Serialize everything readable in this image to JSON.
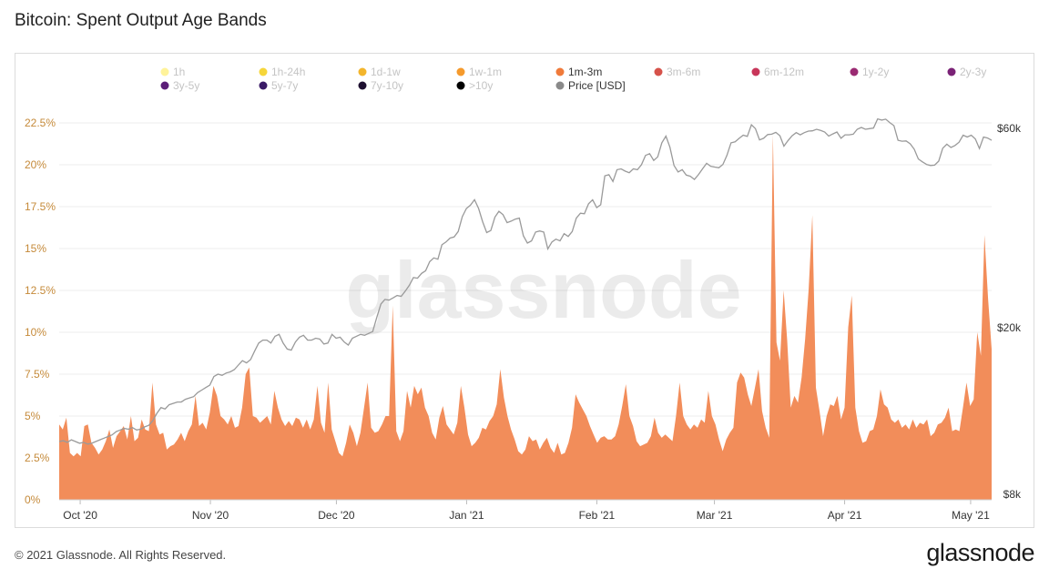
{
  "title": "Bitcoin: Spent Output Age Bands",
  "footer": {
    "copyright": "© 2021 Glassnode. All Rights Reserved.",
    "logo": "glassnode"
  },
  "watermark": "glassnode",
  "colors": {
    "area": "#f28d5a",
    "price": "#9a9a9a",
    "left_axis": "#c58a3a",
    "right_axis": "#333333"
  },
  "chart_data": {
    "type": "area",
    "title": "Bitcoin: Spent Output Age Bands",
    "legend": [
      {
        "label": "1h",
        "color": "#fff39a",
        "active": false
      },
      {
        "label": "1h-24h",
        "color": "#f6d63a",
        "active": false
      },
      {
        "label": "1d-1w",
        "color": "#f3b52c",
        "active": false
      },
      {
        "label": "1w-1m",
        "color": "#f59a2c",
        "active": false
      },
      {
        "label": "1m-3m",
        "color": "#f07a3a",
        "active": true
      },
      {
        "label": "3m-6m",
        "color": "#d6524a",
        "active": false
      },
      {
        "label": "6m-12m",
        "color": "#c8365a",
        "active": false
      },
      {
        "label": "1y-2y",
        "color": "#9a2a72",
        "active": false
      },
      {
        "label": "2y-3y",
        "color": "#7a2276",
        "active": false
      },
      {
        "label": "3y-5y",
        "color": "#5c1e78",
        "active": false
      },
      {
        "label": "5y-7y",
        "color": "#3a1a66",
        "active": false
      },
      {
        "label": "7y-10y",
        "color": "#1e1030",
        "active": false
      },
      {
        "label": ">10y",
        "color": "#000000",
        "active": false
      },
      {
        "label": "Price [USD]",
        "color": "#8a8a8a",
        "active": true
      }
    ],
    "x_ticks": [
      "Oct '20",
      "Nov '20",
      "Dec '20",
      "Jan '21",
      "Feb '21",
      "Mar '21",
      "Apr '21",
      "May '21"
    ],
    "y_left_ticks": [
      "0%",
      "2.5%",
      "5%",
      "7.5%",
      "10%",
      "12.5%",
      "15%",
      "17.5%",
      "20%",
      "22.5%"
    ],
    "y_left_range": [
      0,
      22.5
    ],
    "y_right_ticks": [
      "$8k",
      "$20k",
      "$60k"
    ],
    "y_right_scale": "log",
    "y_right_range": [
      8000,
      60000
    ],
    "date_range": [
      "2020-09-26",
      "2021-05-06"
    ],
    "series": [
      {
        "name": "1m-3m",
        "unit": "%",
        "values": [
          4.5,
          4.2,
          4.9,
          2.8,
          2.6,
          2.8,
          2.6,
          4.4,
          4.5,
          3.4,
          3.1,
          2.7,
          3.0,
          3.5,
          4.2,
          3.1,
          3.8,
          4.1,
          4.4,
          3.6,
          5.0,
          3.5,
          3.7,
          4.8,
          4.2,
          4.1,
          7.0,
          4.5,
          3.9,
          4.0,
          3.0,
          3.2,
          3.3,
          3.6,
          4.0,
          3.5,
          4.1,
          4.5,
          6.2,
          4.4,
          4.6,
          4.2,
          5.2,
          6.8,
          6.2,
          5.0,
          4.8,
          4.5,
          5.0,
          4.3,
          4.4,
          5.5,
          7.5,
          7.9,
          5.0,
          4.9,
          4.6,
          4.8,
          5.0,
          4.5,
          6.5,
          5.5,
          4.8,
          4.4,
          4.7,
          4.4,
          4.9,
          4.8,
          4.3,
          4.8,
          4.2,
          4.8,
          6.8,
          4.6,
          4.0,
          7.0,
          4.2,
          3.5,
          2.8,
          2.6,
          3.4,
          4.5,
          4.0,
          3.2,
          4.0,
          5.5,
          7.0,
          4.3,
          4.0,
          4.1,
          4.5,
          5.0,
          5.0,
          11.6,
          4.1,
          3.5,
          4.1,
          6.5,
          5.5,
          6.8,
          6.3,
          6.7,
          5.5,
          5.0,
          4.0,
          3.6,
          4.9,
          5.6,
          4.5,
          4.2,
          3.9,
          4.6,
          6.8,
          5.5,
          3.9,
          3.2,
          3.4,
          3.7,
          4.3,
          4.2,
          4.7,
          5.0,
          5.7,
          7.8,
          6.1,
          5.0,
          4.2,
          3.6,
          2.9,
          2.7,
          3.0,
          3.8,
          3.5,
          3.6,
          3.0,
          3.4,
          3.7,
          3.1,
          2.8,
          3.4,
          2.7,
          2.8,
          3.4,
          4.3,
          6.3,
          5.8,
          5.4,
          5.0,
          4.4,
          3.9,
          3.4,
          3.7,
          3.8,
          3.6,
          3.6,
          3.8,
          4.5,
          5.6,
          6.9,
          5.0,
          4.4,
          3.5,
          3.2,
          3.3,
          3.4,
          3.8,
          4.9,
          4.0,
          3.7,
          3.9,
          3.7,
          3.5,
          5.0,
          7.0,
          5.0,
          4.5,
          4.2,
          4.5,
          4.3,
          4.8,
          4.6,
          6.5,
          5.0,
          4.5,
          3.6,
          2.9,
          3.6,
          4.0,
          4.3,
          7.0,
          7.6,
          7.3,
          6.3,
          5.6,
          6.7,
          7.8,
          5.3,
          4.3,
          3.7,
          21.8,
          9.4,
          8.3,
          12.5,
          9.5,
          5.5,
          6.2,
          5.8,
          7.3,
          9.6,
          12.6,
          17.0,
          6.7,
          5.3,
          3.8,
          5.0,
          5.7,
          5.6,
          6.2,
          4.8,
          5.5,
          10.3,
          12.2,
          5.5,
          4.1,
          3.4,
          3.5,
          4.1,
          4.2,
          5.0,
          6.6,
          5.7,
          5.5,
          4.8,
          4.6,
          4.8,
          4.3,
          4.5,
          4.2,
          4.8,
          4.3,
          4.6,
          4.5,
          4.8,
          3.8,
          4.0,
          4.5,
          4.6,
          4.9,
          5.5,
          4.1,
          4.2,
          4.1,
          5.5,
          7.0,
          5.6,
          6.0,
          10.0,
          8.6,
          15.8,
          12.0,
          9.0
        ]
      },
      {
        "name": "Price [USD]",
        "unit": "USD",
        "values": [
          10700,
          10750,
          10650,
          10800,
          10700,
          10600,
          10650,
          10550,
          10600,
          10700,
          10800,
          10900,
          11000,
          11100,
          11300,
          11400,
          11500,
          11450,
          11550,
          11400,
          11450,
          11600,
          11700,
          12000,
          12500,
          12900,
          12800,
          13100,
          13200,
          13300,
          13300,
          13500,
          13600,
          13700,
          14000,
          14200,
          14400,
          14600,
          15300,
          15500,
          15400,
          15600,
          15700,
          15900,
          16300,
          16700,
          16500,
          16800,
          17600,
          18400,
          18700,
          18700,
          18400,
          19100,
          19300,
          18400,
          17800,
          17700,
          18500,
          19000,
          19200,
          18700,
          18700,
          18900,
          18800,
          18300,
          18400,
          19300,
          18900,
          19000,
          18500,
          18200,
          18900,
          19100,
          19300,
          19200,
          19400,
          19600,
          21200,
          22800,
          23400,
          23300,
          23600,
          23900,
          23800,
          24500,
          25300,
          26400,
          26300,
          27000,
          27400,
          28800,
          29400,
          29200,
          31600,
          32100,
          32800,
          33000,
          34000,
          36900,
          38600,
          39300,
          40500,
          38600,
          35900,
          33800,
          34200,
          36800,
          38000,
          37300,
          35700,
          36000,
          36400,
          36600,
          33200,
          31900,
          32300,
          33900,
          34100,
          33900,
          30900,
          32100,
          32600,
          32300,
          33600,
          33100,
          34000,
          36600,
          37600,
          37500,
          39600,
          40500,
          38800,
          39400,
          46200,
          46500,
          44800,
          47800,
          48000,
          47400,
          47000,
          48000,
          47800,
          49100,
          51700,
          52200,
          50300,
          51300,
          55400,
          57500,
          54100,
          48900,
          47200,
          47800,
          46400,
          46100,
          45300,
          46500,
          48000,
          49500,
          48700,
          48500,
          48300,
          49200,
          51700,
          55400,
          55700,
          56800,
          57800,
          57400,
          61200,
          59900,
          56300,
          56800,
          58000,
          58100,
          58700,
          57600,
          54400,
          56100,
          57600,
          58600,
          57900,
          58600,
          59100,
          59200,
          59700,
          59300,
          58800,
          57500,
          58200,
          58800,
          56800,
          57900,
          57900,
          58100,
          59700,
          60300,
          59700,
          59900,
          60100,
          63200,
          62800,
          63100,
          61900,
          60900,
          56200,
          55900,
          56000,
          55100,
          53500,
          50700,
          49900,
          49200,
          48900,
          49000,
          50100,
          53800,
          55000,
          54000,
          54600,
          55600,
          57800,
          57200,
          57800,
          56600,
          53700,
          57200,
          56900,
          56200
        ]
      }
    ]
  }
}
